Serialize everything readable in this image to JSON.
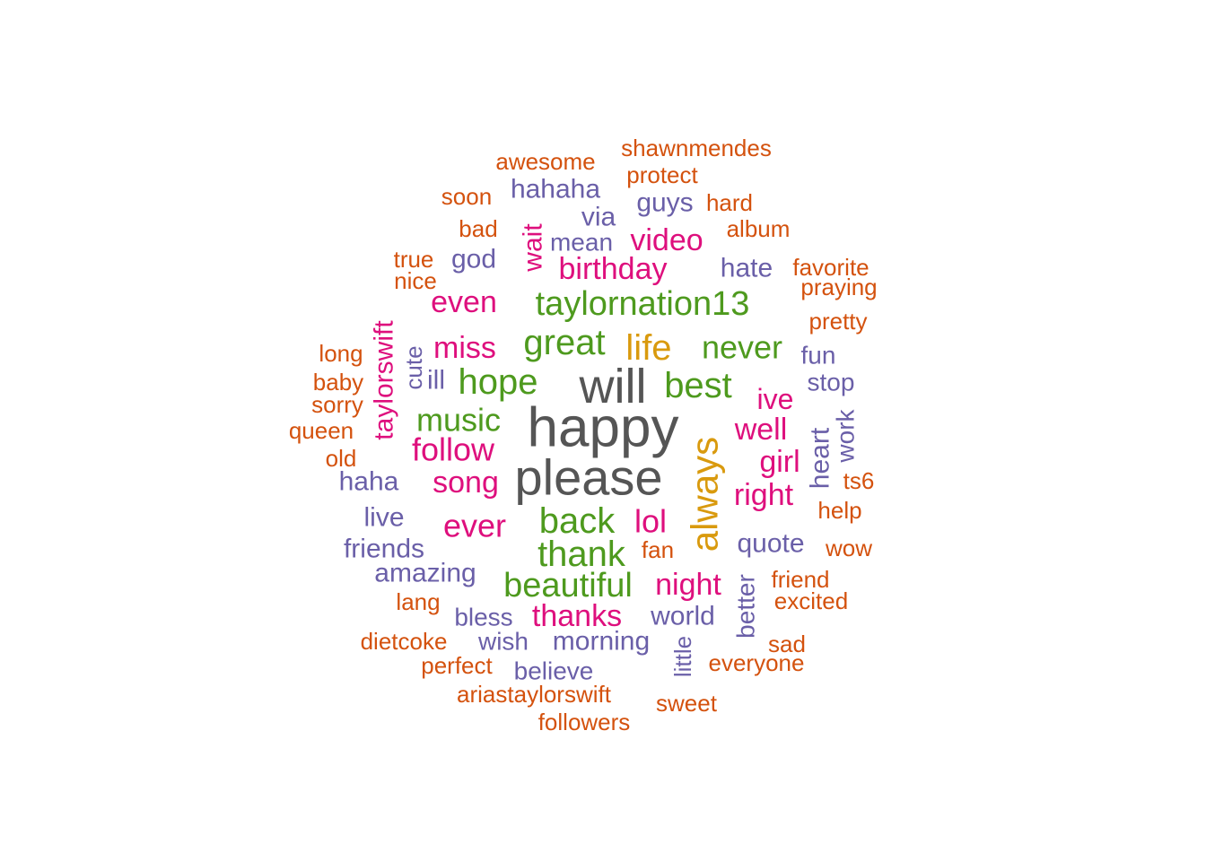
{
  "colors": {
    "gray": "#555555",
    "gold": "#D99A0E",
    "green": "#4E9A1E",
    "magenta": "#DE0F7D",
    "purple": "#6A5FA8",
    "orange": "#D4520E"
  },
  "words": [
    {
      "text": "happy",
      "color": "gray"
    },
    {
      "text": "please",
      "color": "gray"
    },
    {
      "text": "will",
      "color": "gray"
    },
    {
      "text": "always",
      "color": "gold"
    },
    {
      "text": "life",
      "color": "gold"
    },
    {
      "text": "great",
      "color": "green"
    },
    {
      "text": "hope",
      "color": "green"
    },
    {
      "text": "best",
      "color": "green"
    },
    {
      "text": "never",
      "color": "green"
    },
    {
      "text": "music",
      "color": "green"
    },
    {
      "text": "back",
      "color": "green"
    },
    {
      "text": "thank",
      "color": "green"
    },
    {
      "text": "beautiful",
      "color": "green"
    },
    {
      "text": "taylornation13",
      "color": "green"
    },
    {
      "text": "miss",
      "color": "magenta"
    },
    {
      "text": "even",
      "color": "magenta"
    },
    {
      "text": "birthday",
      "color": "magenta"
    },
    {
      "text": "video",
      "color": "magenta"
    },
    {
      "text": "wait",
      "color": "magenta"
    },
    {
      "text": "taylorswift",
      "color": "magenta"
    },
    {
      "text": "follow",
      "color": "magenta"
    },
    {
      "text": "song",
      "color": "magenta"
    },
    {
      "text": "ever",
      "color": "magenta"
    },
    {
      "text": "lol",
      "color": "magenta"
    },
    {
      "text": "ive",
      "color": "magenta"
    },
    {
      "text": "well",
      "color": "magenta"
    },
    {
      "text": "girl",
      "color": "magenta"
    },
    {
      "text": "right",
      "color": "magenta"
    },
    {
      "text": "night",
      "color": "magenta"
    },
    {
      "text": "thanks",
      "color": "magenta"
    },
    {
      "text": "hahaha",
      "color": "purple"
    },
    {
      "text": "via",
      "color": "purple"
    },
    {
      "text": "guys",
      "color": "purple"
    },
    {
      "text": "mean",
      "color": "purple"
    },
    {
      "text": "god",
      "color": "purple"
    },
    {
      "text": "hate",
      "color": "purple"
    },
    {
      "text": "cute",
      "color": "purple"
    },
    {
      "text": "ill",
      "color": "purple"
    },
    {
      "text": "fun",
      "color": "purple"
    },
    {
      "text": "stop",
      "color": "purple"
    },
    {
      "text": "heart",
      "color": "purple"
    },
    {
      "text": "work",
      "color": "purple"
    },
    {
      "text": "haha",
      "color": "purple"
    },
    {
      "text": "live",
      "color": "purple"
    },
    {
      "text": "friends",
      "color": "purple"
    },
    {
      "text": "amazing",
      "color": "purple"
    },
    {
      "text": "quote",
      "color": "purple"
    },
    {
      "text": "better",
      "color": "purple"
    },
    {
      "text": "bless",
      "color": "purple"
    },
    {
      "text": "world",
      "color": "purple"
    },
    {
      "text": "wish",
      "color": "purple"
    },
    {
      "text": "morning",
      "color": "purple"
    },
    {
      "text": "little",
      "color": "purple"
    },
    {
      "text": "believe",
      "color": "purple"
    },
    {
      "text": "shawnmendes",
      "color": "orange"
    },
    {
      "text": "awesome",
      "color": "orange"
    },
    {
      "text": "protect",
      "color": "orange"
    },
    {
      "text": "soon",
      "color": "orange"
    },
    {
      "text": "hard",
      "color": "orange"
    },
    {
      "text": "bad",
      "color": "orange"
    },
    {
      "text": "album",
      "color": "orange"
    },
    {
      "text": "true",
      "color": "orange"
    },
    {
      "text": "nice",
      "color": "orange"
    },
    {
      "text": "favorite",
      "color": "orange"
    },
    {
      "text": "praying",
      "color": "orange"
    },
    {
      "text": "pretty",
      "color": "orange"
    },
    {
      "text": "long",
      "color": "orange"
    },
    {
      "text": "baby",
      "color": "orange"
    },
    {
      "text": "sorry",
      "color": "orange"
    },
    {
      "text": "queen",
      "color": "orange"
    },
    {
      "text": "old",
      "color": "orange"
    },
    {
      "text": "ts6",
      "color": "orange"
    },
    {
      "text": "help",
      "color": "orange"
    },
    {
      "text": "wow",
      "color": "orange"
    },
    {
      "text": "fan",
      "color": "orange"
    },
    {
      "text": "friend",
      "color": "orange"
    },
    {
      "text": "excited",
      "color": "orange"
    },
    {
      "text": "lang",
      "color": "orange"
    },
    {
      "text": "dietcoke",
      "color": "orange"
    },
    {
      "text": "sad",
      "color": "orange"
    },
    {
      "text": "perfect",
      "color": "orange"
    },
    {
      "text": "everyone",
      "color": "orange"
    },
    {
      "text": "ariastaylorswift",
      "color": "orange"
    },
    {
      "text": "sweet",
      "color": "orange"
    },
    {
      "text": "followers",
      "color": "orange"
    }
  ]
}
